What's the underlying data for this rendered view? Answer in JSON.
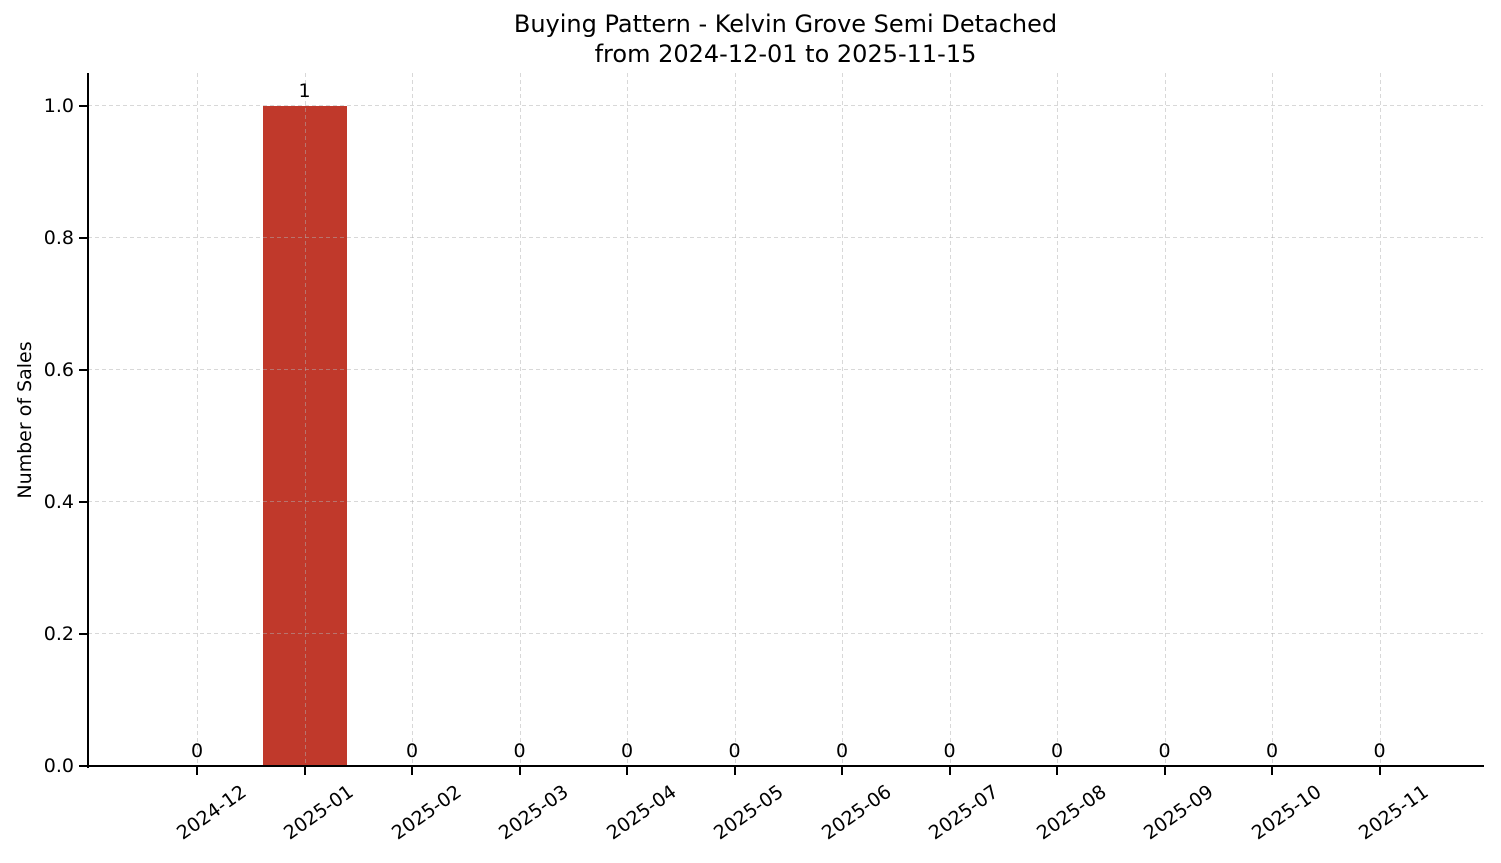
{
  "chart_data": {
    "type": "bar",
    "title": "Buying Pattern - Kelvin Grove Semi Detached",
    "subtitle": "from 2024-12-01 to 2025-11-15",
    "xlabel": "",
    "ylabel": "Number of Sales",
    "categories": [
      "2024-12",
      "2025-01",
      "2025-02",
      "2025-03",
      "2025-04",
      "2025-05",
      "2025-06",
      "2025-07",
      "2025-08",
      "2025-09",
      "2025-10",
      "2025-11"
    ],
    "values": [
      0,
      1,
      0,
      0,
      0,
      0,
      0,
      0,
      0,
      0,
      0,
      0
    ],
    "bar_value_labels": [
      "0",
      "1",
      "0",
      "0",
      "0",
      "0",
      "0",
      "0",
      "0",
      "0",
      "0",
      "0"
    ],
    "yticks": {
      "values": [
        0.0,
        0.2,
        0.4,
        0.6,
        0.8,
        1.0
      ],
      "labels": [
        "0.0",
        "0.2",
        "0.4",
        "0.6",
        "0.8",
        "1.0"
      ]
    },
    "ylim": [
      0,
      1.05
    ],
    "grid": "dashed",
    "legend": "none",
    "colors": {
      "bar": "#c0392b",
      "grid": "#b0b0b0",
      "text": "#000000",
      "spine": "#000000",
      "background": "#ffffff"
    }
  }
}
